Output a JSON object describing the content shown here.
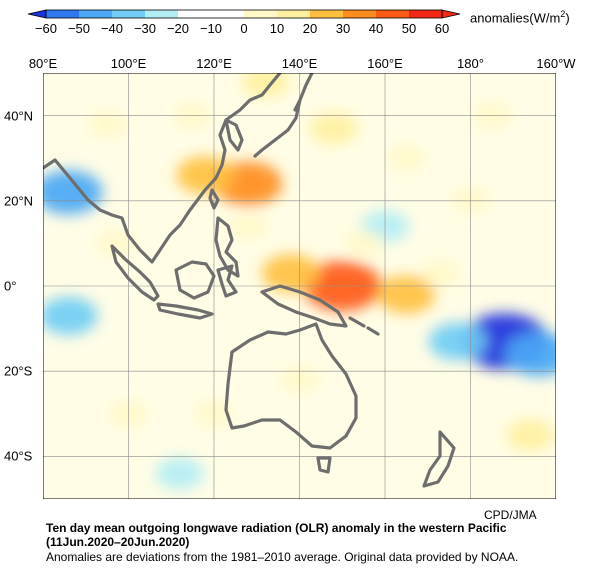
{
  "colorbar": {
    "ticks": [
      "−60",
      "−50",
      "−40",
      "−30",
      "−20",
      "−10",
      "0",
      "10",
      "20",
      "30",
      "40",
      "50",
      "60"
    ],
    "unit_label": "anomalies(W/m",
    "unit_sup": "2",
    "unit_close": ")",
    "colors": [
      "#1e32dc",
      "#2d7af0",
      "#4aa8f5",
      "#70cdf5",
      "#b4eef5",
      "#ffffff",
      "#ffffff",
      "#fff8c8",
      "#fff0a0",
      "#ffc040",
      "#ff8c1e",
      "#ff5a14",
      "#f02814"
    ],
    "range": [
      -60,
      60
    ]
  },
  "map": {
    "lon_labels": [
      "80°E",
      "100°E",
      "120°E",
      "140°E",
      "160°E",
      "180°",
      "160°W"
    ],
    "lat_labels": [
      "40°N",
      "20°N",
      "0°",
      "20°S",
      "40°S"
    ],
    "lon_range": [
      80,
      200
    ],
    "lat_range": [
      -50,
      50
    ],
    "coastline_color": "#6e6e6e"
  },
  "credit": "CPD/JMA",
  "caption": {
    "title": "Ten day mean outgoing longwave radiation (OLR) anomaly in the western Pacific",
    "period": "(11Jun.2020–20Jun.2020)",
    "note": "Anomalies are deviations from the 1981–2010 average. Original data provided by NOAA."
  },
  "anomaly_regions": [
    {
      "lon": 128,
      "lat": 24,
      "value": 40
    },
    {
      "lon": 118,
      "lat": 26,
      "value": 30
    },
    {
      "lon": 150,
      "lat": 0,
      "value": 50
    },
    {
      "lon": 165,
      "lat": -2,
      "value": 30
    },
    {
      "lon": 138,
      "lat": 3,
      "value": 30
    },
    {
      "lon": 132,
      "lat": 48,
      "value": 20
    },
    {
      "lon": 188,
      "lat": -13,
      "value": -60
    },
    {
      "lon": 196,
      "lat": -16,
      "value": -40
    },
    {
      "lon": 177,
      "lat": -13,
      "value": -30
    },
    {
      "lon": 86,
      "lat": 22,
      "value": -40
    },
    {
      "lon": 86,
      "lat": -7,
      "value": -30
    },
    {
      "lon": 148,
      "lat": 37,
      "value": 20
    },
    {
      "lon": 194,
      "lat": -35,
      "value": 20
    },
    {
      "lon": 173,
      "lat": 3,
      "value": 10
    },
    {
      "lon": 112,
      "lat": -44,
      "value": -20
    },
    {
      "lon": 95,
      "lat": 38,
      "value": 10
    },
    {
      "lon": 128,
      "lat": 14,
      "value": 10
    },
    {
      "lon": 115,
      "lat": 40,
      "value": 10
    },
    {
      "lon": 160,
      "lat": 14,
      "value": -20
    },
    {
      "lon": 97,
      "lat": 10,
      "value": 10
    },
    {
      "lon": 120,
      "lat": -30,
      "value": 10
    },
    {
      "lon": 180,
      "lat": 20,
      "value": 10
    },
    {
      "lon": 165,
      "lat": 30,
      "value": 10
    },
    {
      "lon": 155,
      "lat": 10,
      "value": 10
    },
    {
      "lon": 100,
      "lat": -30,
      "value": 10
    },
    {
      "lon": 185,
      "lat": 40,
      "value": 10
    },
    {
      "lon": 140,
      "lat": -22,
      "value": 10
    }
  ]
}
